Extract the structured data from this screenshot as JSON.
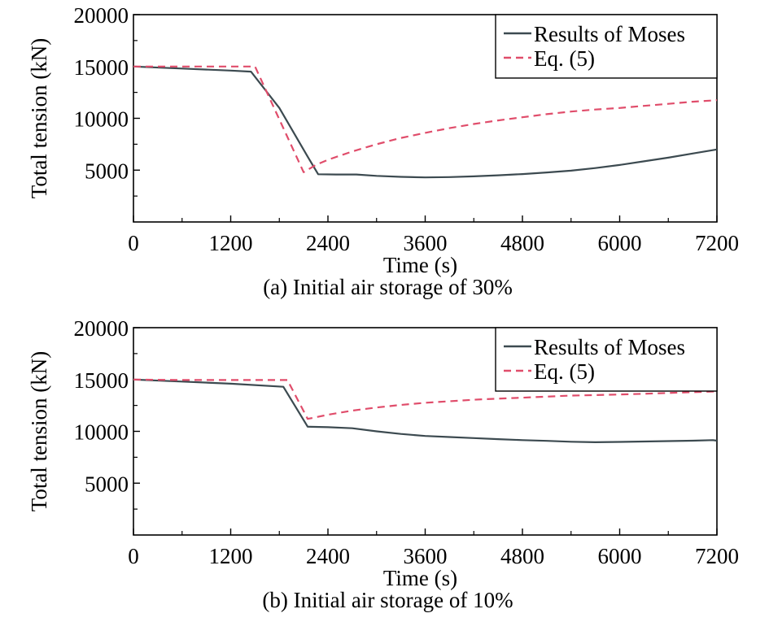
{
  "chart_data": [
    {
      "type": "line",
      "caption": "(a) Initial air storage of 30%",
      "xlabel": "Time (s)",
      "ylabel": "Total tension (kN)",
      "xlim": [
        0,
        7200
      ],
      "ylim": [
        0,
        20000
      ],
      "xticks": [
        "0",
        "1200",
        "2400",
        "3600",
        "4800",
        "6000",
        "7200"
      ],
      "yticks": [
        "5000",
        "10000",
        "15000",
        "20000"
      ],
      "legend_position": "top-right",
      "series": [
        {
          "name": "Results of Moses",
          "color": "#3c4a50",
          "style": "solid",
          "x": [
            0,
            600,
            1200,
            1450,
            1800,
            2150,
            2280,
            2500,
            2750,
            3000,
            3300,
            3600,
            3900,
            4200,
            4500,
            4800,
            5100,
            5400,
            5700,
            6000,
            6300,
            6600,
            6900,
            7200
          ],
          "y": [
            15000,
            14800,
            14600,
            14500,
            11000,
            6300,
            4600,
            4580,
            4580,
            4450,
            4350,
            4300,
            4330,
            4400,
            4500,
            4620,
            4780,
            4950,
            5200,
            5500,
            5850,
            6200,
            6600,
            7000
          ]
        },
        {
          "name": "Eq. (5)",
          "color": "#e04d6b",
          "style": "dashed",
          "x": [
            0,
            300,
            1200,
            1500,
            2100,
            2250,
            2400,
            2700,
            3000,
            3300,
            3600,
            3900,
            4200,
            4500,
            4800,
            5100,
            5400,
            5700,
            6000,
            6300,
            6600,
            6900,
            7200
          ],
          "y": [
            15000,
            15000,
            15000,
            15000,
            4800,
            5500,
            6000,
            6800,
            7500,
            8100,
            8600,
            9050,
            9450,
            9800,
            10100,
            10400,
            10650,
            10850,
            11000,
            11200,
            11400,
            11600,
            11750
          ]
        }
      ]
    },
    {
      "type": "line",
      "caption": "(b) Initial air storage of 10%",
      "xlabel": "Time (s)",
      "ylabel": "Total tension (kN)",
      "xlim": [
        0,
        7200
      ],
      "ylim": [
        0,
        20000
      ],
      "xticks": [
        "0",
        "1200",
        "2400",
        "3600",
        "4800",
        "6000",
        "7200"
      ],
      "yticks": [
        "5000",
        "10000",
        "15000",
        "20000"
      ],
      "legend_position": "top-right",
      "series": [
        {
          "name": "Results of Moses",
          "color": "#3c4a50",
          "style": "solid",
          "x": [
            0,
            600,
            1200,
            1850,
            2150,
            2400,
            2700,
            3000,
            3300,
            3600,
            3900,
            4200,
            4500,
            4800,
            5100,
            5400,
            5700,
            6000,
            6300,
            6600,
            6900,
            7150,
            7200
          ],
          "y": [
            15000,
            14800,
            14600,
            14300,
            10450,
            10400,
            10300,
            10000,
            9750,
            9550,
            9450,
            9350,
            9250,
            9150,
            9080,
            9000,
            8950,
            8980,
            9020,
            9060,
            9100,
            9150,
            9100
          ]
        },
        {
          "name": "Eq. (5)",
          "color": "#e04d6b",
          "style": "dashed",
          "x": [
            0,
            600,
            1200,
            1900,
            2150,
            2400,
            2700,
            3000,
            3300,
            3600,
            3900,
            4200,
            4500,
            4800,
            5100,
            5400,
            5700,
            6000,
            6300,
            6600,
            6900,
            7200
          ],
          "y": [
            15000,
            14950,
            14950,
            14950,
            11200,
            11600,
            12000,
            12300,
            12550,
            12750,
            12900,
            13050,
            13150,
            13250,
            13350,
            13450,
            13500,
            13550,
            13620,
            13700,
            13780,
            13850
          ]
        }
      ]
    }
  ]
}
